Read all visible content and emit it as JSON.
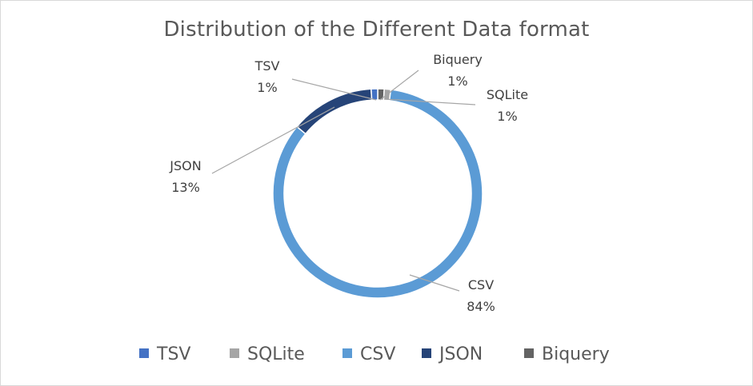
{
  "chart_data": {
    "type": "donut",
    "title": "Distribution of the Different Data format",
    "series": [
      {
        "name": "TSV",
        "value": 1,
        "label": "1%",
        "color": "#4472C4"
      },
      {
        "name": "SQLite",
        "value": 1,
        "label": "1%",
        "color": "#A5A5A5"
      },
      {
        "name": "CSV",
        "value": 84,
        "label": "84%",
        "color": "#5B9BD5"
      },
      {
        "name": "JSON",
        "value": 13,
        "label": "13%",
        "color": "#264478"
      },
      {
        "name": "Biquery",
        "value": 1,
        "label": "1%",
        "color": "#636363"
      }
    ],
    "legend": [
      "TSV",
      "SQLite",
      "CSV",
      "JSON",
      "Biquery"
    ],
    "legend_position": "bottom"
  }
}
